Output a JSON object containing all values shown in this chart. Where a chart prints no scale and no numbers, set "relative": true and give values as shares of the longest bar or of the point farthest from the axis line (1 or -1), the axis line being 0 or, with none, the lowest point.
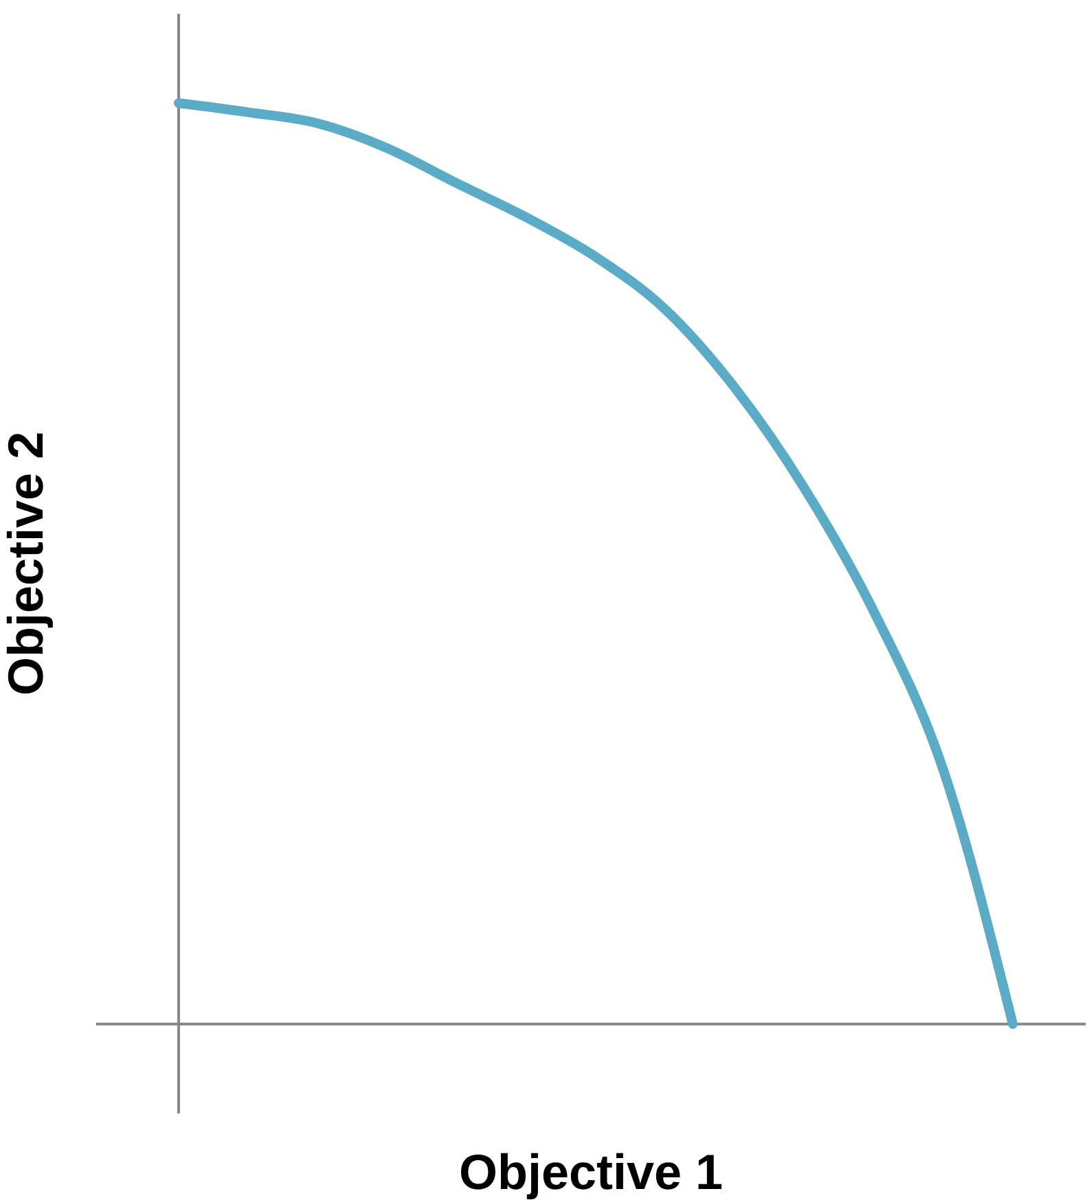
{
  "chart_data": {
    "type": "line",
    "xlabel": "Objective 1",
    "ylabel": "Objective 2",
    "relative": true,
    "categories": [
      null,
      null,
      null,
      null,
      null,
      null,
      null,
      null,
      null,
      null,
      null,
      null,
      null
    ],
    "values": [
      1.0,
      0.99,
      0.978,
      0.951,
      0.913,
      0.876,
      0.833,
      0.776,
      0.691,
      0.582,
      0.448,
      0.276,
      0
    ],
    "color": "#5aabc5",
    "grid": false,
    "legend": false,
    "marker": "none"
  }
}
